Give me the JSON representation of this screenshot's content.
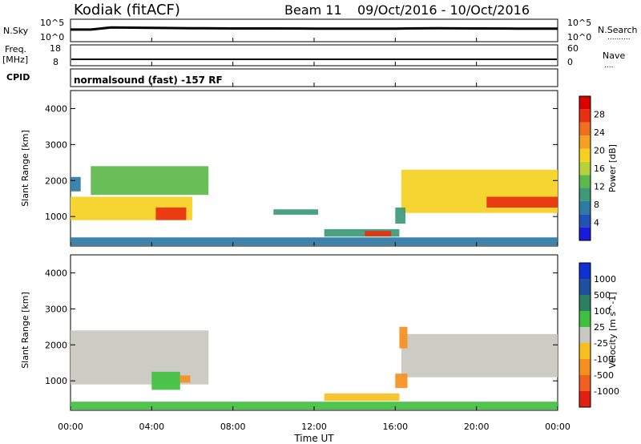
{
  "header": {
    "station": "Kodiak (fitACF)",
    "beam": "Beam 11",
    "date_range": "09/Oct/2016 - 10/Oct/2016",
    "info_line": "normalsound (fast) -157 RF"
  },
  "labels": {
    "nsky": "N.Sky",
    "nsearch": "N.Search",
    "nsearch_dots": "..........",
    "freq": "Freq.",
    "freq_unit": "[MHz]",
    "nave": "Nave",
    "nave_dots": "....",
    "cpid": "CPID",
    "noise_left_top": "10^5",
    "noise_left_bottom": "10^0",
    "noise_right_top": "10^5",
    "noise_right_bottom": "10^0",
    "freq_top": "18",
    "freq_bottom": "8",
    "nave_top": "60",
    "nave_bottom": "0",
    "power_ylabel": "Slant Range [km]",
    "velocity_ylabel": "Slant Range [km]",
    "xlabel": "Time UT",
    "power_cbar_label": "Power [dB]",
    "velocity_cbar_label": "Velocity [m s^-1]"
  },
  "colors": {
    "power_scale": [
      "#1a1adc",
      "#2050b8",
      "#2d7aa5",
      "#3c9a78",
      "#5cb84a",
      "#b8d23a",
      "#f5d020",
      "#f5a020",
      "#f07020",
      "#e83010",
      "#d80000"
    ],
    "velocity_scale": [
      "#1030d0",
      "#2050a0",
      "#2a8060",
      "#40c040",
      "#c8c8c0",
      "#f5c020",
      "#f59020",
      "#f06020",
      "#e02010"
    ],
    "trace": "#000000",
    "axis": "#000000"
  },
  "chart_data": [
    {
      "type": "line",
      "panel": "noise",
      "x_range_hours": [
        0,
        24
      ],
      "y_scale": "log",
      "ylim": [
        "10^0",
        "10^5"
      ],
      "series": [
        {
          "name": "N.Sky",
          "x": [
            0,
            1,
            2,
            4,
            6,
            8,
            10,
            12,
            14,
            16,
            18,
            20,
            22,
            24
          ],
          "values": [
            500,
            500,
            1500,
            1200,
            1000,
            900,
            900,
            800,
            800,
            800,
            1000,
            900,
            800,
            800
          ]
        }
      ]
    },
    {
      "type": "line",
      "panel": "frequency / nave",
      "x_range_hours": [
        0,
        24
      ],
      "series": [
        {
          "name": "Freq.",
          "x": [
            0,
            24
          ],
          "values": [
            10,
            10
          ]
        },
        {
          "name": "Nave",
          "x": [
            0,
            24
          ],
          "values": [
            19,
            19
          ]
        }
      ]
    },
    {
      "type": "heatmap",
      "panel": "power",
      "x_range_hours": [
        0,
        24
      ],
      "xticks": [
        "00:00",
        "04:00",
        "08:00",
        "12:00",
        "16:00",
        "20:00",
        "00:00"
      ],
      "ylim": [
        180,
        4500
      ],
      "yticks": [
        "1000",
        "2000",
        "3000",
        "4000"
      ],
      "colorbar_ticks": [
        "4",
        "8",
        "12",
        "16",
        "20",
        "24",
        "28"
      ],
      "colorbar_range": [
        0,
        30
      ],
      "ylabel": "Slant Range [km]",
      "colorbar_label": "Power [dB]",
      "regions": [
        {
          "t0": 0.0,
          "t1": 6.0,
          "r0": 900,
          "r1": 1550,
          "value": 18
        },
        {
          "t0": 1.0,
          "t1": 6.8,
          "r0": 1600,
          "r1": 2400,
          "value": 11
        },
        {
          "t0": 4.2,
          "t1": 5.7,
          "r0": 900,
          "r1": 1250,
          "value": 27
        },
        {
          "t0": 0.0,
          "t1": 0.5,
          "r0": 1700,
          "r1": 2100,
          "value": 7
        },
        {
          "t0": 0.0,
          "t1": 24.0,
          "r0": 200,
          "r1": 420,
          "value": 5
        },
        {
          "t0": 12.5,
          "t1": 16.2,
          "r0": 440,
          "r1": 650,
          "value": 9
        },
        {
          "t0": 14.5,
          "t1": 15.8,
          "r0": 450,
          "r1": 600,
          "value": 28
        },
        {
          "t0": 16.3,
          "t1": 24.0,
          "r0": 1100,
          "r1": 2300,
          "value": 17
        },
        {
          "t0": 20.5,
          "t1": 24.0,
          "r0": 1250,
          "r1": 1550,
          "value": 26
        },
        {
          "t0": 10.0,
          "t1": 12.2,
          "r0": 1050,
          "r1": 1200,
          "value": 8
        },
        {
          "t0": 16.0,
          "t1": 16.5,
          "r0": 800,
          "r1": 1250,
          "value": 9
        }
      ]
    },
    {
      "type": "heatmap",
      "panel": "velocity",
      "x_range_hours": [
        0,
        24
      ],
      "xticks": [
        "00:00",
        "04:00",
        "08:00",
        "12:00",
        "16:00",
        "20:00",
        "00:00"
      ],
      "ylim": [
        180,
        4500
      ],
      "yticks": [
        "1000",
        "2000",
        "3000",
        "4000"
      ],
      "colorbar_ticks": [
        "1000",
        "500",
        "100",
        "25",
        "-25",
        "-100",
        "-500",
        "-1000"
      ],
      "ylabel": "Slant Range [km]",
      "xlabel": "Time UT",
      "colorbar_label": "Velocity [m s^-1]",
      "regions": [
        {
          "t0": 0.0,
          "t1": 6.8,
          "r0": 900,
          "r1": 2400,
          "value": 0
        },
        {
          "t0": 4.0,
          "t1": 5.4,
          "r0": 750,
          "r1": 1250,
          "value": 80
        },
        {
          "t0": 5.4,
          "t1": 5.9,
          "r0": 950,
          "r1": 1150,
          "value": -150
        },
        {
          "t0": 0.0,
          "t1": 24.0,
          "r0": 200,
          "r1": 420,
          "value": 60
        },
        {
          "t0": 12.5,
          "t1": 16.2,
          "r0": 440,
          "r1": 650,
          "value": -60
        },
        {
          "t0": 16.3,
          "t1": 24.0,
          "r0": 1100,
          "r1": 2300,
          "value": 0
        },
        {
          "t0": 16.0,
          "t1": 16.6,
          "r0": 800,
          "r1": 1200,
          "value": -300
        },
        {
          "t0": 16.2,
          "t1": 16.6,
          "r0": 1900,
          "r1": 2500,
          "value": -400
        }
      ]
    }
  ]
}
